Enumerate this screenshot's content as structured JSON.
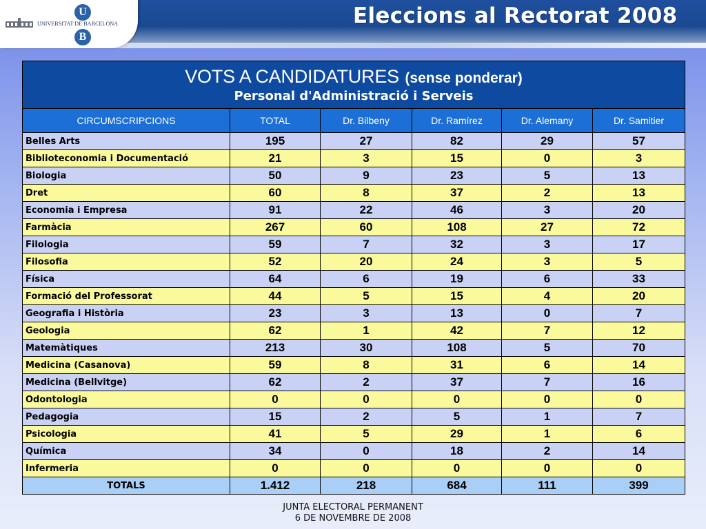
{
  "header": {
    "logo_text": "UNIVERSITAT DE BARCELONA",
    "logo_letters": [
      "U",
      "B"
    ],
    "banner_title": "Eleccions al Rectorat 2008"
  },
  "table": {
    "title": "VOTS A CANDIDATURES",
    "title_note": "(sense ponderar)",
    "subtitle": "Personal d'Administració i Serveis",
    "columns": [
      "CIRCUMSCRIPCIONS",
      "TOTAL",
      "Dr. Bilbeny",
      "Dr. Ramírez",
      "Dr. Alemany",
      "Dr. Samitier"
    ],
    "rows": [
      {
        "name": "Belles Arts",
        "values": [
          "195",
          "27",
          "82",
          "29",
          "57"
        ]
      },
      {
        "name": "Biblioteconomia i Documentació",
        "values": [
          "21",
          "3",
          "15",
          "0",
          "3"
        ]
      },
      {
        "name": "Biologia",
        "values": [
          "50",
          "9",
          "23",
          "5",
          "13"
        ]
      },
      {
        "name": "Dret",
        "values": [
          "60",
          "8",
          "37",
          "2",
          "13"
        ]
      },
      {
        "name": "Economia i Empresa",
        "values": [
          "91",
          "22",
          "46",
          "3",
          "20"
        ]
      },
      {
        "name": "Farmàcia",
        "values": [
          "267",
          "60",
          "108",
          "27",
          "72"
        ]
      },
      {
        "name": "Filologia",
        "values": [
          "59",
          "7",
          "32",
          "3",
          "17"
        ]
      },
      {
        "name": "Filosofia",
        "values": [
          "52",
          "20",
          "24",
          "3",
          "5"
        ]
      },
      {
        "name": "Física",
        "values": [
          "64",
          "6",
          "19",
          "6",
          "33"
        ]
      },
      {
        "name": "Formació del Professorat",
        "values": [
          "44",
          "5",
          "15",
          "4",
          "20"
        ]
      },
      {
        "name": "Geografia i Història",
        "values": [
          "23",
          "3",
          "13",
          "0",
          "7"
        ]
      },
      {
        "name": "Geologia",
        "values": [
          "62",
          "1",
          "42",
          "7",
          "12"
        ]
      },
      {
        "name": "Matemàtiques",
        "values": [
          "213",
          "30",
          "108",
          "5",
          "70"
        ]
      },
      {
        "name": "Medicina (Casanova)",
        "values": [
          "59",
          "8",
          "31",
          "6",
          "14"
        ]
      },
      {
        "name": "Medicina (Bellvitge)",
        "values": [
          "62",
          "2",
          "37",
          "7",
          "16"
        ]
      },
      {
        "name": "Odontologia",
        "values": [
          "0",
          "0",
          "0",
          "0",
          "0"
        ]
      },
      {
        "name": "Pedagogia",
        "values": [
          "15",
          "2",
          "5",
          "1",
          "7"
        ]
      },
      {
        "name": "Psicologia",
        "values": [
          "41",
          "5",
          "29",
          "1",
          "6"
        ]
      },
      {
        "name": "Química",
        "values": [
          "34",
          "0",
          "18",
          "2",
          "14"
        ]
      },
      {
        "name": "Infermeria",
        "values": [
          "0",
          "0",
          "0",
          "0",
          "0"
        ]
      }
    ],
    "totals": {
      "label": "TOTALS",
      "values": [
        "1.412",
        "218",
        "684",
        "111",
        "399"
      ]
    }
  },
  "footer": {
    "line1": "JUNTA ELECTORAL PERMANENT",
    "line2": "6 DE NOVEMBRE DE 2008"
  },
  "colors": {
    "header_blue": "#0d4aa0",
    "column_header_blue": "#1b6fd6",
    "row_lavender": "#c9d1f5",
    "row_yellow": "#fafa9c",
    "totals_blue": "#a9cff6"
  }
}
